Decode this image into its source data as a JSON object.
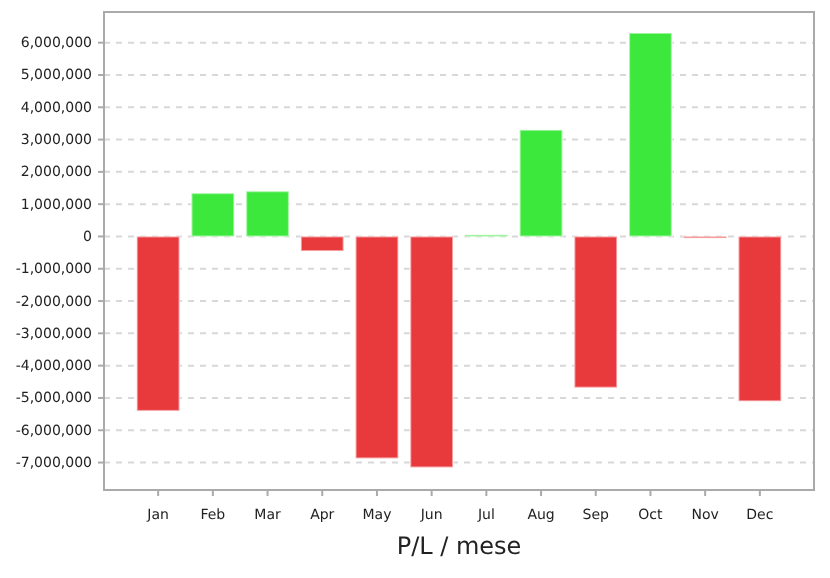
{
  "chart_data": {
    "type": "bar",
    "xlabel": "P/L / mese",
    "categories": [
      "Jan",
      "Feb",
      "Mar",
      "Apr",
      "May",
      "Jun",
      "Jul",
      "Aug",
      "Sep",
      "Oct",
      "Nov",
      "Dec"
    ],
    "values": [
      -5400000,
      1340000,
      1400000,
      -450000,
      -6870000,
      -7150000,
      50000,
      3300000,
      -4680000,
      6300000,
      -50000,
      -5100000
    ],
    "colors": [
      "#e8393d",
      "#3de83d",
      "#3de83d",
      "#e8393d",
      "#e8393d",
      "#e8393d",
      "#3de83d",
      "#3de83d",
      "#e8393d",
      "#3de83d",
      "#e8393d",
      "#e8393d"
    ],
    "ylim": [
      -7850000,
      6950000
    ],
    "yticks": [
      {
        "value": -7000000,
        "label": "-7,000,000"
      },
      {
        "value": -6000000,
        "label": "-6,000,000"
      },
      {
        "value": -5000000,
        "label": "-5,000,000"
      },
      {
        "value": -4000000,
        "label": "-4,000,000"
      },
      {
        "value": -3000000,
        "label": "-3,000,000"
      },
      {
        "value": -2000000,
        "label": "-2,000,000"
      },
      {
        "value": -1000000,
        "label": "-1,000,000"
      },
      0,
      {
        "value": 1000000,
        "label": "1,000,000"
      },
      {
        "value": 2000000,
        "label": "2,000,000"
      },
      {
        "value": 3000000,
        "label": "3,000,000"
      },
      {
        "value": 4000000,
        "label": "4,000,000"
      },
      {
        "value": 5000000,
        "label": "5,000,000"
      },
      {
        "value": 6000000,
        "label": "6,000,000"
      }
    ],
    "grid": "y"
  }
}
